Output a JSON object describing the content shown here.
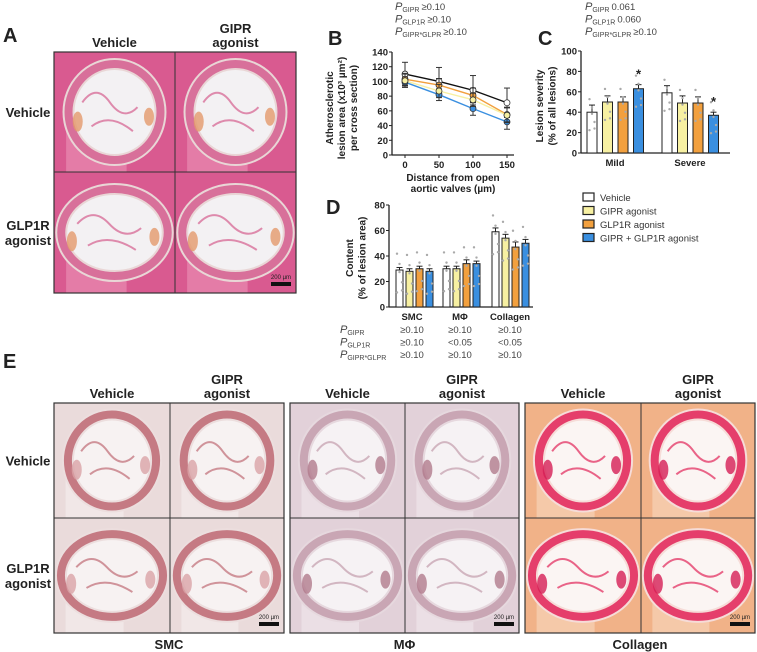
{
  "colors": {
    "vehicle": "#ffffff",
    "gipr": "#f7f0a2",
    "glp1r": "#f2a03e",
    "combo": "#3a8fe0",
    "axis": "#222222"
  },
  "panel_a": {
    "label": "A",
    "col_headers": [
      [
        "Vehicle"
      ],
      [
        "GIPR",
        "agonist"
      ]
    ],
    "row_headers": [
      [
        "Vehicle"
      ],
      [
        "GLP1R",
        "agonist"
      ]
    ],
    "scale_bar": "200 µm"
  },
  "panel_e": {
    "label": "E",
    "col_headers": [
      [
        "Vehicle"
      ],
      [
        "GIPR",
        "agonist"
      ]
    ],
    "row_headers": [
      [
        "Vehicle"
      ],
      [
        "GLP1R",
        "agonist"
      ]
    ],
    "groups": [
      "SMC",
      "MΦ",
      "Collagen"
    ],
    "scale_bar": "200 µm"
  },
  "legend": [
    "Vehicle",
    "GIPR agonist",
    "GLP1R agonist",
    "GIPR + GLP1R agonist"
  ],
  "chart_data": [
    {
      "panel": "B",
      "type": "line",
      "pvalues": [
        {
          "sub": "GIPR",
          "value": "≥0.10"
        },
        {
          "sub": "GLP1R",
          "value": "≥0.10"
        },
        {
          "sub": "GIPR*GLPR",
          "value": "≥0.10"
        }
      ],
      "ylabel": [
        "Atherosclerotic",
        "lesion area (x10³ µm²)",
        "per cross section)"
      ],
      "xlabel": [
        "Distance from open",
        "aortic valves (µm)"
      ],
      "x": [
        0,
        50,
        100,
        150
      ],
      "xticks": [
        "0",
        "50",
        "100",
        "150"
      ],
      "ylim": [
        0,
        140
      ],
      "yticks": [
        "0",
        "20",
        "40",
        "60",
        "80",
        "100",
        "120",
        "140"
      ],
      "series": [
        {
          "name": "Vehicle",
          "values": [
            110,
            100,
            88,
            71
          ],
          "err": [
            16,
            19,
            20,
            20
          ]
        },
        {
          "name": "GIPR agonist",
          "values": [
            101,
            87,
            75,
            54
          ],
          "err": [
            9,
            9,
            9,
            10
          ]
        },
        {
          "name": "GLP1R agonist",
          "values": [
            103,
            95,
            81,
            55
          ],
          "err": [
            8,
            9,
            10,
            10
          ]
        },
        {
          "name": "GIPR + GLP1R agonist",
          "values": [
            99,
            82,
            63,
            45
          ],
          "err": [
            7,
            8,
            9,
            10
          ]
        }
      ]
    },
    {
      "panel": "C",
      "type": "bar",
      "pvalues": [
        {
          "sub": "GIPR",
          "value": "0.061"
        },
        {
          "sub": "GLP1R",
          "value": "0.060"
        },
        {
          "sub": "GIPR*GLPR",
          "value": "≥0.10"
        }
      ],
      "ylabel": [
        "Lesion severity",
        "(% of all lesions)"
      ],
      "categories": [
        "Mild",
        "Severe"
      ],
      "ylim": [
        0,
        100
      ],
      "yticks": [
        "0",
        "20",
        "40",
        "60",
        "80",
        "100"
      ],
      "series": [
        {
          "name": "Vehicle",
          "values": [
            40,
            59
          ],
          "err": [
            7,
            7
          ]
        },
        {
          "name": "GIPR agonist",
          "values": [
            50,
            49
          ],
          "err": [
            6,
            7
          ]
        },
        {
          "name": "GLP1R agonist",
          "values": [
            50,
            49
          ],
          "err": [
            5,
            6
          ]
        },
        {
          "name": "GIPR + GLP1R agonist",
          "values": [
            63,
            37
          ],
          "err": [
            4,
            3
          ]
        }
      ],
      "annotations": [
        {
          "category": "Mild",
          "series": "GIPR + GLP1R agonist",
          "text": "*"
        },
        {
          "category": "Severe",
          "series": "GIPR + GLP1R agonist",
          "text": "*"
        }
      ]
    },
    {
      "panel": "D",
      "type": "bar",
      "ylabel": [
        "Content",
        "(% of lesion area)"
      ],
      "categories": [
        "SMC",
        "MΦ",
        "Collagen"
      ],
      "ylim": [
        0,
        80
      ],
      "yticks": [
        "0",
        "20",
        "40",
        "60",
        "80"
      ],
      "series": [
        {
          "name": "Vehicle",
          "values": [
            29,
            30,
            59
          ],
          "err": [
            2,
            2,
            3
          ]
        },
        {
          "name": "GIPR agonist",
          "values": [
            28,
            30,
            54
          ],
          "err": [
            2,
            2,
            3
          ]
        },
        {
          "name": "GLP1R agonist",
          "values": [
            30,
            34,
            47
          ],
          "err": [
            2,
            3,
            4
          ]
        },
        {
          "name": "GIPR + GLP1R agonist",
          "values": [
            28,
            34,
            50
          ],
          "err": [
            2,
            2,
            3
          ]
        }
      ],
      "pvalue_table": [
        {
          "sub": "GIPR",
          "values": [
            "≥0.10",
            "≥0.10",
            "≥0.10"
          ]
        },
        {
          "sub": "GLP1R",
          "values": [
            "≥0.10",
            "<0.05",
            "<0.05"
          ]
        },
        {
          "sub": "GIPR*GLPR",
          "values": [
            "≥0.10",
            "≥0.10",
            "≥0.10"
          ]
        }
      ]
    }
  ]
}
